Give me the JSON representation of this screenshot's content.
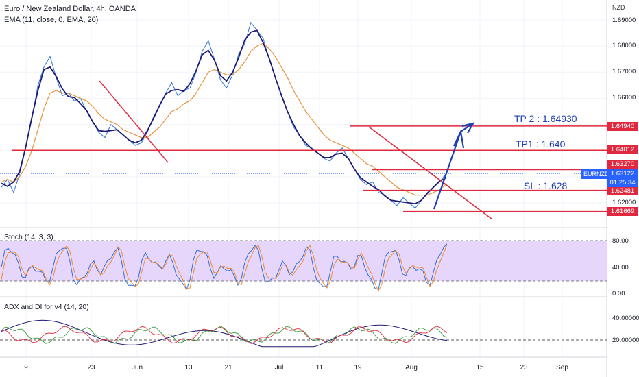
{
  "header": {
    "title": "Euro / New Zealand Dollar, 4h, OANDA",
    "ema_label": "EMA (11, close, 0, EMA, 20)",
    "currency": "NZD"
  },
  "price_axis": {
    "ticks": [
      {
        "label": "1.69000",
        "value": 1.69
      },
      {
        "label": "1.68000",
        "value": 1.68
      },
      {
        "label": "1.67000",
        "value": 1.67
      },
      {
        "label": "1.66000",
        "value": 1.66
      },
      {
        "label": "1.62000",
        "value": 1.62
      }
    ],
    "tags": [
      {
        "label": "1.64940",
        "value": 1.6494,
        "color": "#e0283e"
      },
      {
        "label": "1.64012",
        "value": 1.64012,
        "color": "#e0283e"
      },
      {
        "label": "1.63270",
        "value": 1.6327,
        "color": "#e0283e"
      },
      {
        "label": "1.62481",
        "value": 1.62481,
        "color": "#e0283e"
      },
      {
        "label": "1.61669",
        "value": 1.61669,
        "color": "#e0283e"
      }
    ],
    "current": {
      "symbol": "EURNZD",
      "price": "1.63122",
      "countdown": "01:25:34",
      "color": "#2962ff"
    }
  },
  "annotations": {
    "tp2": "TP 2 : 1.64930",
    "tp1": "TP1 : 1.640",
    "sl": "SL : 1.628"
  },
  "indicators": {
    "stoch": {
      "label": "Stoch (14, 3, 3)",
      "ticks": [
        "80.00",
        "40.00",
        "0.00"
      ]
    },
    "adx": {
      "label": "ADX and DI for v4 (14, 20)",
      "ticks": [
        "40.00000",
        "20.00000"
      ]
    }
  },
  "time_axis": [
    "9",
    "23",
    "Jun",
    "13",
    "21",
    "Jul",
    "11",
    "19",
    "Aug",
    "15",
    "23",
    "Sep"
  ],
  "chart_data": {
    "type": "line",
    "title": "Euro / New Zealand Dollar, 4h, OANDA",
    "ylim": [
      1.611,
      1.694
    ],
    "series": [
      {
        "name": "Euro / New Zealand Dollar",
        "color": "#3b7dd8",
        "values": [
          1.626,
          1.629,
          1.624,
          1.631,
          1.641,
          1.652,
          1.665,
          1.672,
          1.676,
          1.668,
          1.661,
          1.662,
          1.659,
          1.66,
          1.655,
          1.651,
          1.647,
          1.645,
          1.65,
          1.648,
          1.646,
          1.644,
          1.642,
          1.643,
          1.647,
          1.653,
          1.657,
          1.662,
          1.666,
          1.661,
          1.663,
          1.664,
          1.67,
          1.678,
          1.682,
          1.675,
          1.667,
          1.664,
          1.669,
          1.677,
          1.681,
          1.689,
          1.686,
          1.683,
          1.675,
          1.668,
          1.661,
          1.655,
          1.649,
          1.646,
          1.642,
          1.641,
          1.639,
          1.637,
          1.636,
          1.639,
          1.641,
          1.637,
          1.633,
          1.629,
          1.627,
          1.628,
          1.624,
          1.623,
          1.621,
          1.619,
          1.622,
          1.62,
          1.618,
          1.621,
          1.624,
          1.626,
          1.628,
          1.631
        ]
      },
      {
        "name": "EMA (11, close, 0, EMA, 20)",
        "color": "#e8923a",
        "values": [
          1.628,
          1.629,
          1.628,
          1.63,
          1.634,
          1.64,
          1.648,
          1.656,
          1.662,
          1.663,
          1.662,
          1.662,
          1.661,
          1.66,
          1.659,
          1.657,
          1.654,
          1.652,
          1.651,
          1.65,
          1.648,
          1.647,
          1.646,
          1.645,
          1.645,
          1.647,
          1.649,
          1.652,
          1.655,
          1.656,
          1.658,
          1.659,
          1.662,
          1.666,
          1.67,
          1.671,
          1.67,
          1.669,
          1.669,
          1.671,
          1.674,
          1.678,
          1.68,
          1.681,
          1.679,
          1.676,
          1.672,
          1.668,
          1.663,
          1.659,
          1.655,
          1.652,
          1.649,
          1.646,
          1.644,
          1.643,
          1.642,
          1.641,
          1.639,
          1.637,
          1.635,
          1.634,
          1.632,
          1.63,
          1.628,
          1.626,
          1.625,
          1.624,
          1.623,
          1.623,
          1.623,
          1.624,
          1.625,
          1.627
        ]
      }
    ]
  }
}
